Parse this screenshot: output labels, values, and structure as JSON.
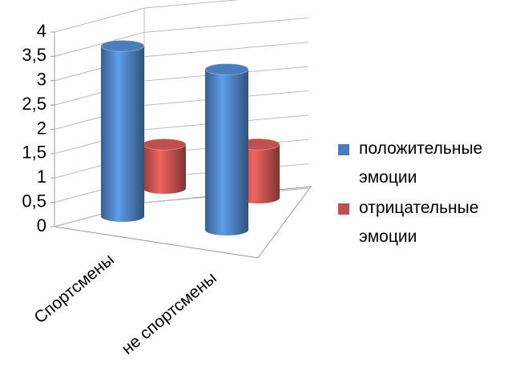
{
  "chart_data": {
    "type": "bar3d",
    "categories": [
      "Спортсмены",
      "не спортсмены"
    ],
    "series": [
      {
        "name": "положительные эмоции",
        "color": "#4a7ebb",
        "values": [
          3.5,
          3.3
        ]
      },
      {
        "name": "отрицательные эмоции",
        "color": "#c0504d",
        "values": [
          0.9,
          1.1
        ]
      }
    ],
    "ylim": [
      0,
      4
    ],
    "yticks": [
      0,
      {
        "value": 0.5,
        "label": "0,5"
      },
      1,
      {
        "value": 1.5,
        "label": "1,5"
      },
      2,
      {
        "value": 2.5,
        "label": "2,5"
      },
      3,
      {
        "value": 3.5,
        "label": "3,5"
      },
      4
    ],
    "grid": true,
    "legend": "right"
  }
}
